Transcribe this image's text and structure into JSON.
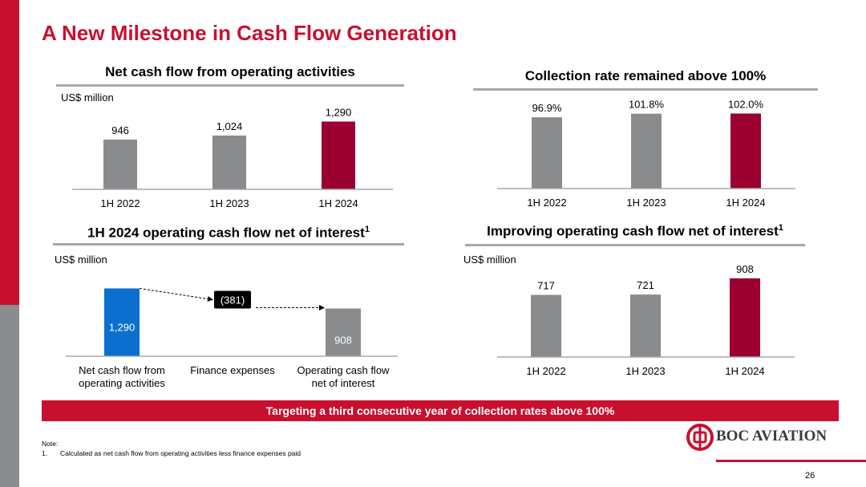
{
  "slide": {
    "title": "A New Milestone in Cash Flow Generation",
    "banner": "Targeting a third consecutive year of collection rates above 100%",
    "note_heading": "Note:",
    "note_number": "1.",
    "note_text": "Calculated as net cash flow from operating activities less finance expenses paid",
    "logo_text": "BOC AVIATION",
    "page_number": "26",
    "colors": {
      "brand_red": "#c8102e",
      "bar_grey": "#898b8d",
      "highlight_bar": "#9b0030",
      "waterfall_blue": "#0a6fcf"
    }
  },
  "chart_data": [
    {
      "type": "bar",
      "title": "Net cash flow from operating activities",
      "unit_label": "US$ million",
      "categories": [
        "1H 2022",
        "1H 2023",
        "1H 2024"
      ],
      "values": [
        946,
        1024,
        1290
      ],
      "value_labels": [
        "946",
        "1,024",
        "1,290"
      ],
      "highlight_index": 2,
      "ylim": [
        0,
        1450
      ]
    },
    {
      "type": "bar",
      "title": "Collection rate remained above 100%",
      "categories": [
        "1H 2022",
        "1H 2023",
        "1H 2024"
      ],
      "values": [
        96.9,
        101.8,
        102.0
      ],
      "value_labels": [
        "96.9%",
        "101.8%",
        "102.0%"
      ],
      "highlight_index": 2,
      "ylim": [
        0,
        120
      ]
    },
    {
      "type": "bar",
      "subtype": "waterfall",
      "title": "1H 2024 operating cash flow net of interest",
      "title_sup": "1",
      "unit_label": "US$ million",
      "categories": [
        "Net cash flow from operating activities",
        "Finance expenses",
        "Operating cash flow net of interest"
      ],
      "category_lines": [
        [
          "Net cash flow from",
          "operating activities"
        ],
        [
          "Finance expenses"
        ],
        [
          "Operating cash flow",
          "net of interest"
        ]
      ],
      "values": [
        1290,
        -381,
        908
      ],
      "value_labels": [
        "1,290",
        "(381)",
        "908"
      ],
      "ylim": [
        0,
        1450
      ]
    },
    {
      "type": "bar",
      "title": "Improving operating cash flow net of interest",
      "title_sup": "1",
      "unit_label": "US$ million",
      "categories": [
        "1H 2022",
        "1H 2023",
        "1H 2024"
      ],
      "values": [
        717,
        721,
        908
      ],
      "value_labels": [
        "717",
        "721",
        "908"
      ],
      "highlight_index": 2,
      "ylim": [
        0,
        1000
      ]
    }
  ]
}
